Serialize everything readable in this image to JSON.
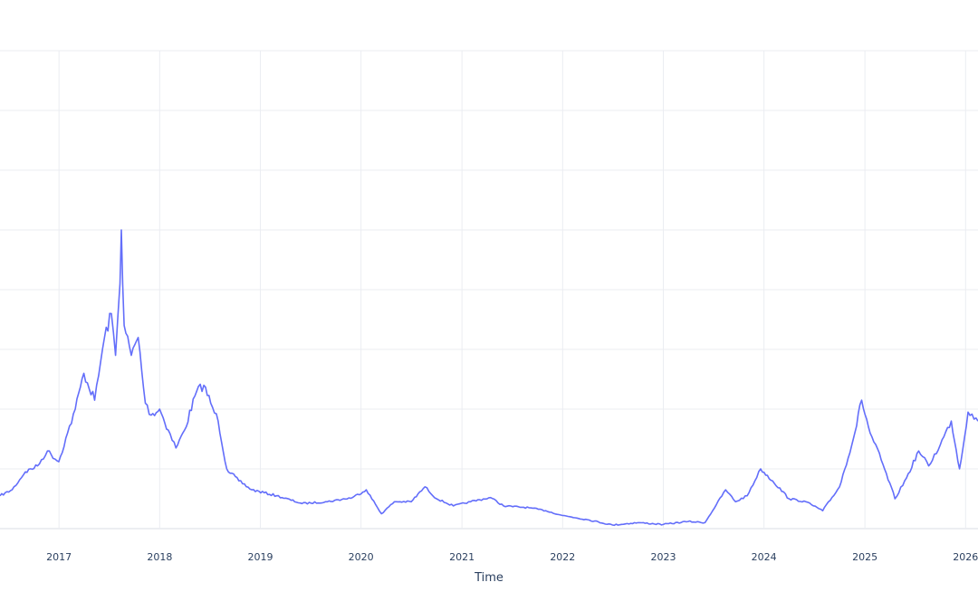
{
  "chart_data": {
    "type": "line",
    "title": "",
    "xlabel": "Time",
    "ylabel": "",
    "grid": true,
    "legend": "none",
    "x_ticks": [
      "2017",
      "2018",
      "2019",
      "2020",
      "2021",
      "2022",
      "2023",
      "2024",
      "2025",
      "2026"
    ],
    "xlim": [
      "2016-06-01",
      "2026-02-15"
    ],
    "ylim": [
      0,
      8
    ],
    "series": [
      {
        "name": "",
        "color": "#636efa",
        "points": [
          [
            "2016-06-01",
            0.55
          ],
          [
            "2016-07-15",
            0.65
          ],
          [
            "2016-09-01",
            0.95
          ],
          [
            "2016-10-15",
            1.05
          ],
          [
            "2016-11-20",
            1.3
          ],
          [
            "2016-12-31",
            1.12
          ],
          [
            "2017-02-01",
            1.6
          ],
          [
            "2017-03-01",
            2.0
          ],
          [
            "2017-04-01",
            2.6
          ],
          [
            "2017-05-10",
            2.15
          ],
          [
            "2017-06-15",
            3.2
          ],
          [
            "2017-07-10",
            3.6
          ],
          [
            "2017-07-25",
            2.9
          ],
          [
            "2017-08-10",
            4.1
          ],
          [
            "2017-08-15",
            5.0
          ],
          [
            "2017-08-25",
            3.4
          ],
          [
            "2017-09-20",
            2.9
          ],
          [
            "2017-10-15",
            3.2
          ],
          [
            "2017-11-10",
            2.1
          ],
          [
            "2017-12-01",
            1.9
          ],
          [
            "2018-01-01",
            2.0
          ],
          [
            "2018-02-01",
            1.65
          ],
          [
            "2018-03-01",
            1.35
          ],
          [
            "2018-04-01",
            1.65
          ],
          [
            "2018-05-15",
            2.3
          ],
          [
            "2018-06-10",
            2.4
          ],
          [
            "2018-07-05",
            2.1
          ],
          [
            "2018-08-01",
            1.8
          ],
          [
            "2018-09-01",
            1.0
          ],
          [
            "2018-10-15",
            0.8
          ],
          [
            "2018-12-01",
            0.65
          ],
          [
            "2019-03-01",
            0.55
          ],
          [
            "2019-06-01",
            0.42
          ],
          [
            "2019-09-01",
            0.45
          ],
          [
            "2019-12-01",
            0.52
          ],
          [
            "2020-01-20",
            0.65
          ],
          [
            "2020-03-15",
            0.25
          ],
          [
            "2020-05-01",
            0.45
          ],
          [
            "2020-07-01",
            0.45
          ],
          [
            "2020-08-20",
            0.7
          ],
          [
            "2020-10-01",
            0.5
          ],
          [
            "2020-12-01",
            0.38
          ],
          [
            "2021-02-01",
            0.45
          ],
          [
            "2021-04-15",
            0.52
          ],
          [
            "2021-06-01",
            0.38
          ],
          [
            "2021-09-01",
            0.35
          ],
          [
            "2021-11-01",
            0.3
          ],
          [
            "2022-01-01",
            0.22
          ],
          [
            "2022-04-01",
            0.15
          ],
          [
            "2022-07-01",
            0.06
          ],
          [
            "2022-10-01",
            0.1
          ],
          [
            "2023-01-01",
            0.07
          ],
          [
            "2023-04-01",
            0.12
          ],
          [
            "2023-06-01",
            0.1
          ],
          [
            "2023-08-15",
            0.65
          ],
          [
            "2023-09-20",
            0.45
          ],
          [
            "2023-11-01",
            0.55
          ],
          [
            "2023-12-20",
            1.0
          ],
          [
            "2024-02-01",
            0.8
          ],
          [
            "2024-04-01",
            0.5
          ],
          [
            "2024-06-01",
            0.45
          ],
          [
            "2024-08-01",
            0.3
          ],
          [
            "2024-10-01",
            0.7
          ],
          [
            "2024-11-20",
            1.5
          ],
          [
            "2024-12-20",
            2.15
          ],
          [
            "2025-01-20",
            1.6
          ],
          [
            "2025-03-01",
            1.15
          ],
          [
            "2025-04-20",
            0.5
          ],
          [
            "2025-06-01",
            0.85
          ],
          [
            "2025-07-15",
            1.3
          ],
          [
            "2025-08-20",
            1.05
          ],
          [
            "2025-10-01",
            1.4
          ],
          [
            "2025-11-10",
            1.8
          ],
          [
            "2025-12-10",
            1.0
          ],
          [
            "2026-01-10",
            1.95
          ],
          [
            "2026-02-15",
            1.8
          ]
        ]
      }
    ]
  }
}
